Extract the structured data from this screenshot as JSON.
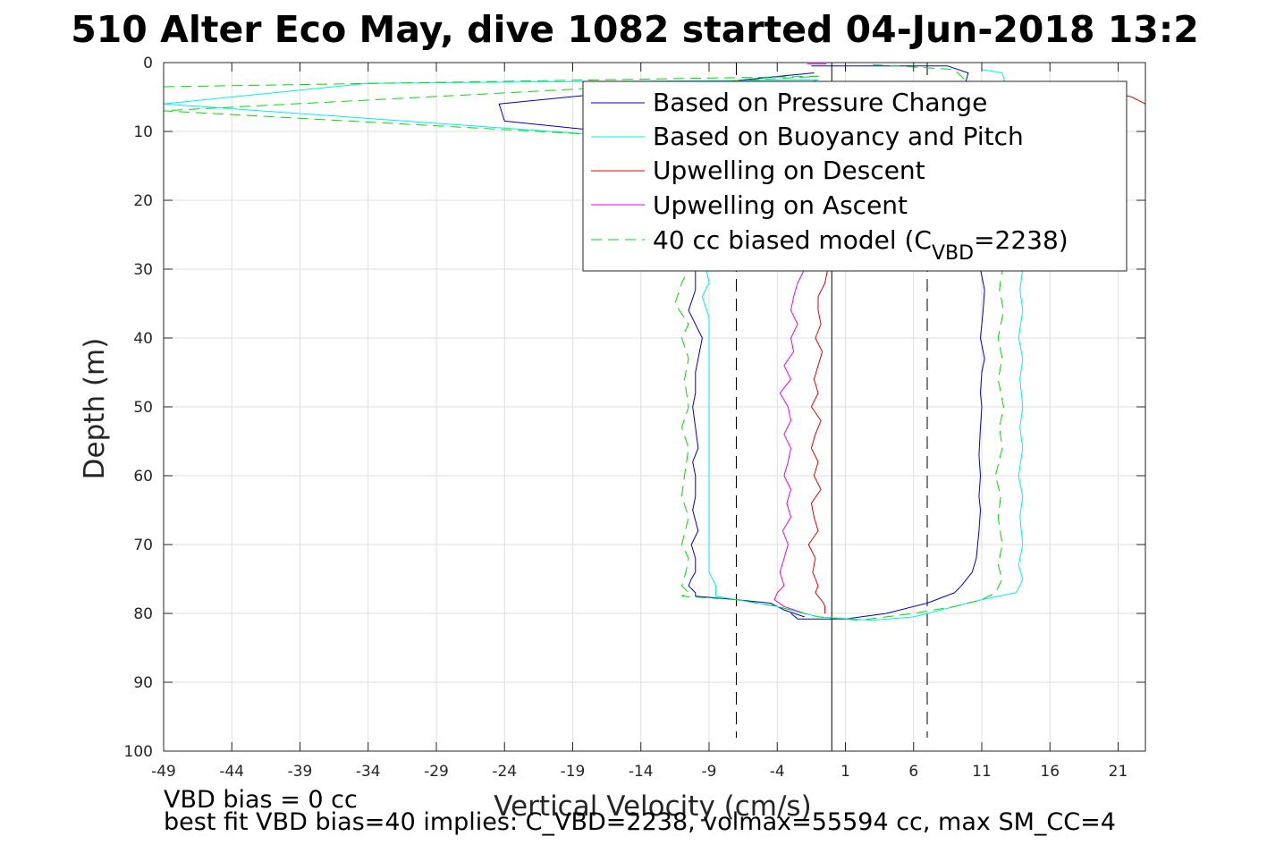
{
  "chart_data": {
    "type": "line",
    "title": "510 Alter Eco May, dive 1082 started 04-Jun-2018 13:2",
    "xlabel": "Vertical Velocity (cm/s)",
    "ylabel": "Depth (m)",
    "xlim": [
      -49,
      23
    ],
    "ylim": [
      0,
      100
    ],
    "y_reversed": true,
    "grid": true,
    "legend_position": "top-right",
    "x_ticks": [
      -49,
      -44,
      -39,
      -34,
      -29,
      -24,
      -19,
      -14,
      -9,
      -4,
      1,
      6,
      11,
      16,
      21
    ],
    "y_ticks": [
      0,
      10,
      20,
      30,
      40,
      50,
      60,
      70,
      80,
      90,
      100
    ],
    "reference_lines": {
      "zero_line_x": 0,
      "dashed_x": [
        -7,
        7
      ]
    },
    "series": [
      {
        "name": "Based on Pressure Change",
        "color": "#0000cc",
        "style": "solid",
        "segments": [
          {
            "x": [
              -1.5,
              8.5,
              10,
              9.8,
              10.3,
              10.7,
              10.9,
              11.2,
              11.1,
              10.9,
              11.2,
              11.0,
              10.9,
              11.0,
              10.9,
              10.8,
              10.9,
              10.8,
              10.9,
              10.8,
              10.7,
              10.6,
              10.3,
              9.5,
              9.0,
              7.0,
              4.0,
              1.0,
              -2.5,
              -3.0
            ],
            "y": [
              0.5,
              0.5,
              1.5,
              3.0,
              10.0,
              20.0,
              30.0,
              33.0,
              36.0,
              40.0,
              43.0,
              45.0,
              48.0,
              50.0,
              53.0,
              57.0,
              60.0,
              63.0,
              65.0,
              68.0,
              70.0,
              72.0,
              74.0,
              76.0,
              77.0,
              78.5,
              80.0,
              80.8,
              80.8,
              80.0
            ]
          },
          {
            "x": [
              -1.3,
              -24.4,
              -24.0,
              -19.0,
              -14.0,
              -11.0,
              -10.0,
              -10.0,
              -10.5,
              -9.5,
              -10.0,
              -10.0,
              -10.2,
              -10.0,
              -9.8,
              -10.2,
              -10.0,
              -10.0,
              -10.2,
              -9.8,
              -10.3,
              -10.0,
              -10.0,
              -10.3,
              -10.5,
              -10.0,
              -10.0,
              -7.0,
              -4.5,
              -3.5,
              -2.0
            ],
            "y": [
              1.5,
              6.0,
              8.5,
              9.5,
              10.5,
              20.0,
              30.0,
              33.0,
              36.0,
              40.0,
              45.0,
              48.0,
              50.0,
              53.0,
              56.0,
              58.0,
              60.0,
              63.0,
              65.0,
              68.0,
              70.0,
              72.0,
              74.0,
              75.0,
              76.0,
              77.0,
              77.5,
              78.0,
              78.5,
              79.5,
              80.5
            ]
          }
        ]
      },
      {
        "name": "Based on Buoyancy and Pitch",
        "color": "#00eeee",
        "style": "solid",
        "segments": [
          {
            "x": [
              -49.0,
              -34.0,
              -1.0,
              -17.0,
              -49.0
            ],
            "y": [
              6.0,
              3.0,
              2.5,
              10.5,
              6.0
            ]
          },
          {
            "x": [
              -17.0,
              -12.0,
              -9.5,
              -9.2,
              -9.0,
              -9.5,
              -9.0,
              -9.0,
              -9.0,
              -9.0,
              -9.0,
              -9.0,
              -9.0,
              -9.0,
              -9.0,
              -9.0,
              -9.0,
              -9.0,
              -8.5,
              -8.5,
              -7.0,
              -4.0,
              -1.0,
              3.0
            ],
            "y": [
              10.5,
              15.0,
              25.0,
              30.0,
              32.0,
              34.0,
              37.0,
              40.0,
              43.0,
              46.0,
              50.0,
              53.0,
              56.0,
              60.0,
              63.0,
              66.0,
              70.0,
              74.0,
              76.0,
              77.5,
              78.0,
              79.0,
              80.5,
              81.0
            ]
          },
          {
            "x": [
              11.0,
              12.5,
              13.0,
              13.5,
              13.7,
              14.0,
              13.8,
              14.0,
              13.7,
              14.0,
              13.8,
              14.0,
              13.8,
              14.0,
              13.7,
              14.0,
              13.8,
              14.0,
              13.7,
              14.0,
              13.8,
              13.5,
              11.0,
              9.0,
              6.0,
              3.0
            ],
            "y": [
              1.0,
              1.5,
              5.0,
              15.0,
              25.0,
              30.0,
              33.0,
              36.0,
              40.0,
              43.0,
              46.0,
              50.0,
              53.0,
              56.0,
              60.0,
              63.0,
              66.0,
              70.0,
              73.0,
              75.0,
              76.0,
              77.0,
              78.0,
              79.0,
              80.5,
              81.0
            ]
          }
        ]
      },
      {
        "name": "Upwelling on Descent",
        "color": "#ee0000",
        "style": "solid",
        "segments": [
          {
            "x": [
              -0.3,
              -0.5,
              -1.0,
              -1.0,
              -0.8,
              -1.2,
              -0.7,
              -1.0,
              -1.3,
              -1.0,
              -1.5,
              -0.8,
              -1.2,
              -1.5,
              -1.0,
              -1.3,
              -0.8,
              -1.5,
              -1.3,
              -1.0,
              -1.7,
              -1.2,
              -1.4,
              -1.0,
              -1.2,
              -0.8,
              -0.6,
              -0.5,
              -0.5,
              -0.5
            ],
            "y": [
              30.0,
              32.0,
              34.0,
              36.0,
              38.0,
              40.0,
              42.0,
              44.0,
              46.0,
              48.0,
              50.0,
              52.0,
              54.0,
              56.0,
              58.0,
              60.0,
              62.0,
              64.0,
              66.0,
              68.0,
              70.0,
              72.0,
              74.0,
              76.0,
              77.0,
              78.0,
              78.5,
              79.0,
              79.5,
              80.0
            ]
          },
          {
            "x": [
              23.0,
              22.0,
              20.0
            ],
            "y": [
              6.0,
              5.0,
              4.0
            ]
          }
        ]
      },
      {
        "name": "Upwelling on Ascent",
        "color": "#ee00ee",
        "style": "solid",
        "segments": [
          {
            "x": [
              -2.0,
              -2.5,
              -2.8,
              -3.0,
              -2.5,
              -3.0,
              -2.8,
              -3.5,
              -3.0,
              -3.8,
              -3.2,
              -3.0,
              -3.5,
              -3.0,
              -3.2,
              -3.5,
              -3.0,
              -3.3,
              -3.0,
              -3.6,
              -3.2,
              -3.5,
              -3.8,
              -3.5,
              -4.0,
              -4.2,
              -3.5,
              -2.0
            ],
            "y": [
              30.0,
              32.0,
              34.0,
              36.0,
              38.0,
              40.0,
              42.0,
              44.0,
              46.0,
              48.0,
              50.0,
              52.0,
              54.0,
              56.0,
              58.0,
              60.0,
              62.0,
              64.0,
              66.0,
              68.0,
              70.0,
              72.0,
              74.0,
              76.0,
              77.0,
              78.0,
              79.0,
              80.0
            ]
          },
          {
            "x": [
              -1.8,
              -0.4
            ],
            "y": [
              0.2,
              0.2
            ]
          }
        ]
      },
      {
        "name": "40 cc biased model (C_VBD=2238)",
        "color": "#00dd00",
        "style": "dashed",
        "segments": [
          {
            "x": [
              -49.5,
              -1.0,
              -49.5,
              -17.0,
              -11.0,
              -10.5,
              -11.0,
              -11.5,
              -10.5,
              -11.0,
              -10.5,
              -10.8,
              -10.5,
              -11.0,
              -10.5,
              -10.8,
              -11.0,
              -10.5,
              -11.0,
              -10.5,
              -10.7,
              -11.0,
              -10.5,
              -11.0,
              -7.0,
              -4.0,
              -1.0,
              2.0
            ],
            "y": [
              3.5,
              2.0,
              7.0,
              10.5,
              25.0,
              30.0,
              32.0,
              35.0,
              38.0,
              40.0,
              43.0,
              46.0,
              50.0,
              53.0,
              56.0,
              60.0,
              63.0,
              66.0,
              70.0,
              72.0,
              74.0,
              76.0,
              77.0,
              77.5,
              78.0,
              79.0,
              80.5,
              81.0
            ]
          },
          {
            "x": [
              3.0,
              9.0,
              11.0,
              12.0,
              12.5,
              12.3,
              12.6,
              12.2,
              12.5,
              12.2,
              12.6,
              12.3,
              12.5,
              12.0,
              12.4,
              12.2,
              12.5,
              12.2,
              12.5,
              12.0,
              11.0,
              9.0,
              6.0,
              2.0
            ],
            "y": [
              0.3,
              1.0,
              5.0,
              20.0,
              30.0,
              33.0,
              36.0,
              40.0,
              43.0,
              46.0,
              50.0,
              53.0,
              56.0,
              60.0,
              63.0,
              66.0,
              70.0,
              73.0,
              75.0,
              77.0,
              78.0,
              79.0,
              80.0,
              81.0
            ]
          }
        ]
      }
    ]
  },
  "legend": {
    "entries": [
      {
        "label": "Based on Pressure Change"
      },
      {
        "label": "Based on Buoyancy and Pitch"
      },
      {
        "label": "Upwelling on Descent"
      },
      {
        "label": "Upwelling on Ascent"
      },
      {
        "label_prefix": "40 cc biased model (C",
        "label_sub": "VBD",
        "label_suffix": "=2238)"
      }
    ]
  },
  "notes": {
    "line1": "VBD bias = 0 cc",
    "line2": "best fit VBD bias=40 implies: C_VBD=2238, volmax=55594 cc, max SM_CC=4"
  }
}
